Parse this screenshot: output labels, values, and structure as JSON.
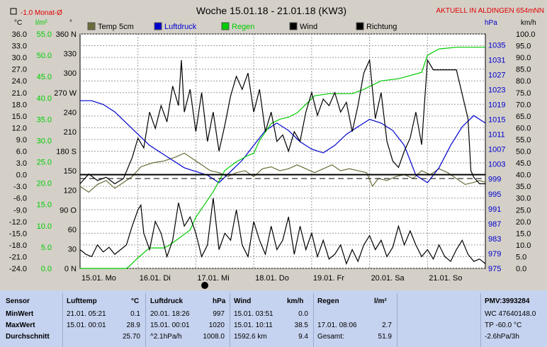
{
  "header": {
    "title": "Woche 15.01.18 - 21.01.18 (KW3)",
    "monthly_avg_label": "-1.0 Monat-Ø",
    "live_label": "AKTUELL IN ALDINGEN 654mNN",
    "unit_temp": "°C",
    "unit_rain": "l/m²",
    "unit_dir": "°",
    "unit_press": "hPa",
    "unit_wind": "km/h"
  },
  "legend": {
    "temp": "Temp 5cm",
    "press": "Luftdruck",
    "rain": "Regen",
    "wind": "Wind",
    "dir": "Richtung"
  },
  "axes": {
    "temp_ticks": [
      "36.0",
      "33.0",
      "30.0",
      "27.0",
      "24.0",
      "21.0",
      "18.0",
      "15.0",
      "12.0",
      "9.0",
      "6.0",
      "3.0",
      "0.0",
      "-3.0",
      "-6.0",
      "-9.0",
      "-12.0",
      "-15.0",
      "-18.0",
      "-21.0",
      "-24.0"
    ],
    "rain_ticks": [
      "55.0",
      "50.0",
      "45.0",
      "40.0",
      "35.0",
      "30.0",
      "25.0",
      "20.0",
      "15.0",
      "10.0",
      "5.0",
      "0.0"
    ],
    "dir_ticks": [
      "360 N",
      "330",
      "300",
      "270 W",
      "240",
      "210",
      "180 S",
      "150",
      "120",
      "90 O",
      "60",
      "30",
      "0 N"
    ],
    "press_ticks": [
      "1035",
      "1031",
      "1027",
      "1023",
      "1019",
      "1015",
      "1011",
      "1007",
      "1003",
      "999",
      "995",
      "991",
      "987",
      "983",
      "979",
      "975"
    ],
    "wind_ticks": [
      "100.0",
      "95.0",
      "90.0",
      "85.0",
      "80.0",
      "75.0",
      "70.0",
      "65.0",
      "60.0",
      "55.0",
      "50.0",
      "45.0",
      "40.0",
      "35.0",
      "30.0",
      "25.0",
      "20.0",
      "15.0",
      "10.0",
      "5.0",
      "0.0"
    ],
    "days": [
      "15.01. Mo",
      "16.01. Di",
      "17.01. Mi",
      "18.01. Do",
      "19.01. Fr",
      "20.01. Sa",
      "21.01. So"
    ]
  },
  "colors": {
    "temp": "#6b6b3a",
    "press": "#0000cc",
    "rain": "#00cc00",
    "wind": "#000000",
    "dir": "#000000",
    "live": "#e00000",
    "grid": "#9a9a9a",
    "plot_bg": "#ffffff"
  },
  "chart_data": {
    "type": "line",
    "title": "Woche 15.01.18 - 21.01.18 (KW3)",
    "x": {
      "label": "",
      "ticks": [
        "15.01. Mo",
        "16.01. Di",
        "17.01. Mi",
        "18.01. Do",
        "19.01. Fr",
        "20.01. Sa",
        "21.01. So"
      ],
      "range_days": [
        0,
        7
      ]
    },
    "axes_ranges": {
      "temp_c": [
        -24,
        36
      ],
      "rain_l_m2": [
        0,
        55
      ],
      "direction_deg": [
        0,
        360
      ],
      "pressure_hpa": [
        975,
        1037.9
      ],
      "wind_kmh": [
        0,
        100
      ]
    },
    "grid": true,
    "legend_position": "top",
    "reference_lines": [
      {
        "axis": "temp_c",
        "value": 0.0,
        "style": "solid"
      },
      {
        "axis": "temp_c",
        "value": -1.0,
        "style": "dashed",
        "label": "-1.0 Monat-Ø"
      }
    ],
    "series": [
      {
        "name": "Temp 5cm",
        "axis": "temp_c",
        "points": [
          [
            0,
            -3.0
          ],
          [
            0.15,
            -4.5
          ],
          [
            0.3,
            -2.5
          ],
          [
            0.45,
            -1.5
          ],
          [
            0.6,
            -3.5
          ],
          [
            0.75,
            -2.0
          ],
          [
            0.9,
            -0.5
          ],
          [
            1.05,
            2.0
          ],
          [
            1.25,
            3.0
          ],
          [
            1.45,
            3.5
          ],
          [
            1.65,
            4.5
          ],
          [
            1.8,
            5.5
          ],
          [
            1.95,
            4.0
          ],
          [
            2.1,
            2.5
          ],
          [
            2.25,
            1.0
          ],
          [
            2.4,
            0.5
          ],
          [
            2.55,
            -0.5
          ],
          [
            2.7,
            0.5
          ],
          [
            2.85,
            1.0
          ],
          [
            3.0,
            -0.5
          ],
          [
            3.15,
            1.5
          ],
          [
            3.3,
            2.0
          ],
          [
            3.45,
            1.0
          ],
          [
            3.6,
            1.5
          ],
          [
            3.75,
            2.5
          ],
          [
            3.9,
            1.5
          ],
          [
            4.05,
            0.5
          ],
          [
            4.2,
            1.5
          ],
          [
            4.35,
            2.5
          ],
          [
            4.5,
            1.0
          ],
          [
            4.65,
            1.5
          ],
          [
            4.8,
            1.0
          ],
          [
            4.95,
            0.5
          ],
          [
            5.05,
            -3.0
          ],
          [
            5.15,
            -1.0
          ],
          [
            5.3,
            -1.5
          ],
          [
            5.45,
            -0.5
          ],
          [
            5.6,
            0.0
          ],
          [
            5.75,
            -1.0
          ],
          [
            5.9,
            1.0
          ],
          [
            6.05,
            0.0
          ],
          [
            6.2,
            1.5
          ],
          [
            6.35,
            0.5
          ],
          [
            6.5,
            -1.0
          ],
          [
            6.65,
            -2.5
          ],
          [
            6.8,
            -2.0
          ],
          [
            6.9,
            -1.5
          ],
          [
            7.0,
            -2.0
          ]
        ]
      },
      {
        "name": "Luftdruck",
        "axis": "pressure_hpa",
        "points": [
          [
            0,
            1020
          ],
          [
            0.2,
            1020
          ],
          [
            0.4,
            1019
          ],
          [
            0.6,
            1017
          ],
          [
            0.8,
            1014
          ],
          [
            1.0,
            1011
          ],
          [
            1.2,
            1008
          ],
          [
            1.4,
            1006
          ],
          [
            1.6,
            1004
          ],
          [
            1.8,
            1002
          ],
          [
            2.0,
            1001
          ],
          [
            2.2,
            1000
          ],
          [
            2.4,
            998
          ],
          [
            2.6,
            1001
          ],
          [
            2.8,
            1004
          ],
          [
            3.0,
            1008
          ],
          [
            3.2,
            1012
          ],
          [
            3.4,
            1014
          ],
          [
            3.6,
            1012
          ],
          [
            3.8,
            1009
          ],
          [
            4.0,
            1007
          ],
          [
            4.2,
            1006
          ],
          [
            4.4,
            1008
          ],
          [
            4.6,
            1011
          ],
          [
            4.8,
            1013
          ],
          [
            5.0,
            1015
          ],
          [
            5.2,
            1014
          ],
          [
            5.4,
            1012
          ],
          [
            5.6,
            1008
          ],
          [
            5.8,
            1000
          ],
          [
            6.0,
            998
          ],
          [
            6.2,
            1002
          ],
          [
            6.4,
            1008
          ],
          [
            6.6,
            1013
          ],
          [
            6.8,
            1016
          ],
          [
            6.9,
            1015
          ],
          [
            7.0,
            1014
          ]
        ]
      },
      {
        "name": "Regen",
        "axis": "rain_l_m2",
        "points": [
          [
            0,
            0
          ],
          [
            0.8,
            0
          ],
          [
            0.85,
            0.5
          ],
          [
            1.0,
            2.5
          ],
          [
            1.2,
            4.8
          ],
          [
            1.45,
            4.8
          ],
          [
            1.55,
            5.5
          ],
          [
            1.7,
            7.0
          ],
          [
            1.9,
            9.0
          ],
          [
            2.0,
            12.0
          ],
          [
            2.15,
            15.0
          ],
          [
            2.3,
            18.0
          ],
          [
            2.5,
            23.0
          ],
          [
            2.7,
            25.0
          ],
          [
            2.9,
            26.5
          ],
          [
            3.0,
            27.0
          ],
          [
            3.1,
            30.0
          ],
          [
            3.2,
            32.0
          ],
          [
            3.3,
            34.0
          ],
          [
            3.45,
            35.0
          ],
          [
            3.6,
            35.5
          ],
          [
            3.75,
            36.5
          ],
          [
            3.9,
            38.5
          ],
          [
            4.05,
            40.5
          ],
          [
            4.3,
            41.0
          ],
          [
            4.7,
            41.0
          ],
          [
            4.9,
            42.0
          ],
          [
            5.2,
            44.0
          ],
          [
            5.5,
            44.5
          ],
          [
            5.9,
            46.0
          ],
          [
            6.0,
            50.0
          ],
          [
            6.2,
            51.5
          ],
          [
            6.5,
            51.9
          ],
          [
            7.0,
            51.9
          ]
        ]
      },
      {
        "name": "Wind",
        "axis": "wind_kmh",
        "points": [
          [
            0,
            8
          ],
          [
            0.1,
            6
          ],
          [
            0.2,
            5
          ],
          [
            0.3,
            10
          ],
          [
            0.4,
            7
          ],
          [
            0.5,
            9
          ],
          [
            0.6,
            6
          ],
          [
            0.7,
            8
          ],
          [
            0.8,
            10
          ],
          [
            0.9,
            18
          ],
          [
            1.0,
            25
          ],
          [
            1.05,
            27
          ],
          [
            1.1,
            15
          ],
          [
            1.2,
            8
          ],
          [
            1.3,
            20
          ],
          [
            1.4,
            15
          ],
          [
            1.5,
            5
          ],
          [
            1.6,
            12
          ],
          [
            1.7,
            28
          ],
          [
            1.8,
            18
          ],
          [
            1.9,
            22
          ],
          [
            2.0,
            15
          ],
          [
            2.1,
            5
          ],
          [
            2.2,
            10
          ],
          [
            2.3,
            30
          ],
          [
            2.4,
            8
          ],
          [
            2.5,
            15
          ],
          [
            2.6,
            12
          ],
          [
            2.7,
            25
          ],
          [
            2.8,
            10
          ],
          [
            2.9,
            5
          ],
          [
            3.0,
            20
          ],
          [
            3.1,
            12
          ],
          [
            3.2,
            6
          ],
          [
            3.3,
            18
          ],
          [
            3.4,
            8
          ],
          [
            3.5,
            12
          ],
          [
            3.6,
            22
          ],
          [
            3.7,
            6
          ],
          [
            3.8,
            18
          ],
          [
            3.9,
            8
          ],
          [
            4.0,
            15
          ],
          [
            4.1,
            5
          ],
          [
            4.2,
            12
          ],
          [
            4.3,
            4
          ],
          [
            4.4,
            6
          ],
          [
            4.5,
            10
          ],
          [
            4.6,
            2
          ],
          [
            4.7,
            8
          ],
          [
            4.8,
            3
          ],
          [
            4.9,
            10
          ],
          [
            5.0,
            14
          ],
          [
            5.1,
            8
          ],
          [
            5.2,
            12
          ],
          [
            5.3,
            5
          ],
          [
            5.4,
            9
          ],
          [
            5.5,
            18
          ],
          [
            5.6,
            10
          ],
          [
            5.7,
            16
          ],
          [
            5.8,
            10
          ],
          [
            5.9,
            5
          ],
          [
            6.0,
            8
          ],
          [
            6.1,
            4
          ],
          [
            6.2,
            10
          ],
          [
            6.3,
            5
          ],
          [
            6.4,
            3
          ],
          [
            6.5,
            8
          ],
          [
            6.6,
            12
          ],
          [
            6.7,
            6
          ],
          [
            6.8,
            3
          ],
          [
            6.9,
            4
          ],
          [
            7.0,
            2
          ]
        ]
      },
      {
        "name": "Richtung",
        "axis": "direction_deg",
        "points": [
          [
            0,
            130
          ],
          [
            0.15,
            145
          ],
          [
            0.3,
            135
          ],
          [
            0.45,
            140
          ],
          [
            0.6,
            130
          ],
          [
            0.75,
            138
          ],
          [
            0.9,
            170
          ],
          [
            1.0,
            200
          ],
          [
            1.1,
            185
          ],
          [
            1.2,
            240
          ],
          [
            1.3,
            215
          ],
          [
            1.4,
            250
          ],
          [
            1.5,
            225
          ],
          [
            1.6,
            280
          ],
          [
            1.7,
            250
          ],
          [
            1.75,
            320
          ],
          [
            1.8,
            240
          ],
          [
            1.9,
            275
          ],
          [
            2.0,
            210
          ],
          [
            2.1,
            270
          ],
          [
            2.2,
            195
          ],
          [
            2.3,
            240
          ],
          [
            2.4,
            180
          ],
          [
            2.5,
            220
          ],
          [
            2.6,
            265
          ],
          [
            2.7,
            295
          ],
          [
            2.8,
            275
          ],
          [
            2.9,
            300
          ],
          [
            3.0,
            240
          ],
          [
            3.1,
            275
          ],
          [
            3.2,
            210
          ],
          [
            3.3,
            240
          ],
          [
            3.4,
            195
          ],
          [
            3.5,
            205
          ],
          [
            3.6,
            180
          ],
          [
            3.7,
            210
          ],
          [
            3.8,
            195
          ],
          [
            3.9,
            240
          ],
          [
            4.0,
            270
          ],
          [
            4.1,
            235
          ],
          [
            4.2,
            260
          ],
          [
            4.3,
            250
          ],
          [
            4.4,
            270
          ],
          [
            4.5,
            240
          ],
          [
            4.6,
            255
          ],
          [
            4.7,
            210
          ],
          [
            4.8,
            250
          ],
          [
            4.9,
            300
          ],
          [
            5.0,
            320
          ],
          [
            5.1,
            230
          ],
          [
            5.2,
            270
          ],
          [
            5.3,
            195
          ],
          [
            5.4,
            165
          ],
          [
            5.5,
            155
          ],
          [
            5.6,
            180
          ],
          [
            5.7,
            200
          ],
          [
            5.8,
            240
          ],
          [
            5.9,
            190
          ],
          [
            6.0,
            320
          ],
          [
            6.1,
            305
          ],
          [
            6.3,
            305
          ],
          [
            6.5,
            305
          ],
          [
            6.7,
            230
          ],
          [
            6.75,
            150
          ],
          [
            6.8,
            140
          ],
          [
            6.9,
            130
          ],
          [
            7.0,
            130
          ]
        ]
      }
    ]
  },
  "summary": {
    "sensor": {
      "title": "Sensor",
      "rows": [
        "MinWert",
        "MaxWert",
        "Durchschnitt"
      ]
    },
    "temp": {
      "title": "Lufttemp",
      "unit": "°C",
      "min_time": "21.01.  05:21",
      "min": "0.1",
      "max_time": "15.01.  00:01",
      "max": "28.9",
      "avg": "25.70"
    },
    "press": {
      "title": "Luftdruck",
      "unit": "hPa",
      "min_time": "20.01.  18:26",
      "min": "997",
      "max_time": "15.01.  00:01",
      "max": "1020",
      "trend_label": "^2.1hPa/h",
      "avg": "1008.0"
    },
    "wind": {
      "title": "Wind",
      "unit": "km/h",
      "min_time": "15.01.  03:51",
      "min": "0.0",
      "max_time": "15.01.  10:11",
      "max": "38.5",
      "dist_label": "1592.6 km",
      "avg": "9.4"
    },
    "rain": {
      "title": "Regen",
      "unit": "l/m²",
      "row1_time": "17.01.  08:06",
      "row1_val": "2.7",
      "total_label": "Gesamt:",
      "total": "51.9"
    },
    "pmv": {
      "title": "PMV:3993284",
      "line1": "WC 47640148.0",
      "line2": "TP -60.0 °C",
      "line3": "-2.6hPa/3h"
    }
  }
}
